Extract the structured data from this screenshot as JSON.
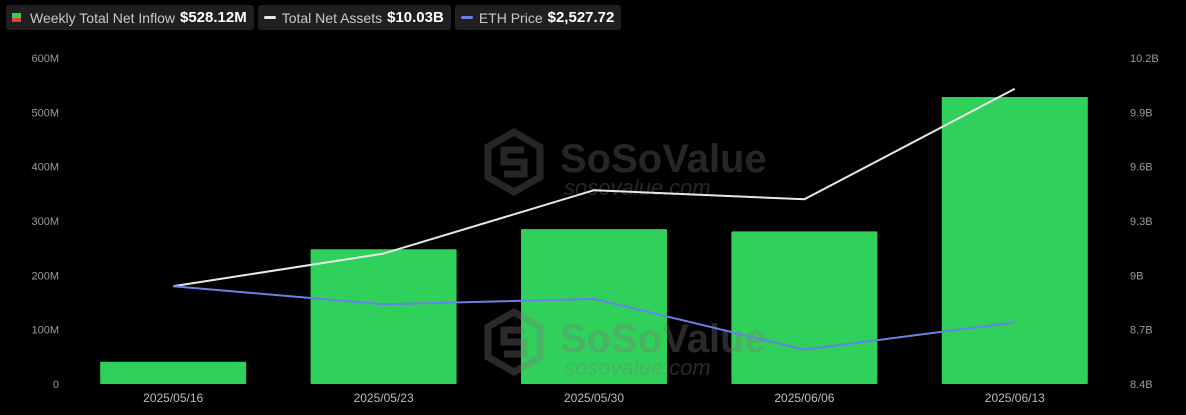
{
  "legend": [
    {
      "name": "Weekly Total Net Inflow",
      "value": "$528.12M",
      "kind": "bar",
      "color": "#2fd15a",
      "neg_color": "#e2403b"
    },
    {
      "name": "Total Net Assets",
      "value": "$10.03B",
      "kind": "line",
      "color": "#e8e8e8"
    },
    {
      "name": "ETH Price",
      "value": "$2,527.72",
      "kind": "line",
      "color": "#6b7fe6"
    }
  ],
  "watermark": {
    "brand": "SoSoValue",
    "url": "sosovalue.com"
  },
  "chart_data": {
    "type": "bar",
    "categories": [
      "2025/05/16",
      "2025/05/23",
      "2025/05/30",
      "2025/06/06",
      "2025/06/13"
    ],
    "series": [
      {
        "name": "Weekly Total Net Inflow",
        "type": "bar",
        "axis": "left",
        "color": "#2fd15a",
        "values": [
          41,
          248,
          285,
          281,
          528.12
        ]
      },
      {
        "name": "Total Net Assets",
        "type": "line",
        "axis": "right",
        "color": "#e8e8e8",
        "values": [
          8.94,
          9.12,
          9.47,
          9.42,
          10.03
        ]
      },
      {
        "name": "ETH Price",
        "type": "line",
        "axis": "right",
        "color": "#6b7fe6",
        "values": [
          8.94,
          8.84,
          8.87,
          8.59,
          8.74
        ]
      }
    ],
    "y_left": {
      "ticks": [
        "0",
        "100M",
        "200M",
        "300M",
        "400M",
        "500M",
        "600M"
      ],
      "ylim": [
        0,
        600
      ]
    },
    "y_right": {
      "ticks": [
        "8.4B",
        "8.7B",
        "9B",
        "9.3B",
        "9.6B",
        "9.9B",
        "10.2B"
      ],
      "ylim": [
        8.4,
        10.2
      ]
    },
    "grid": false,
    "legend_position": "top-left"
  }
}
